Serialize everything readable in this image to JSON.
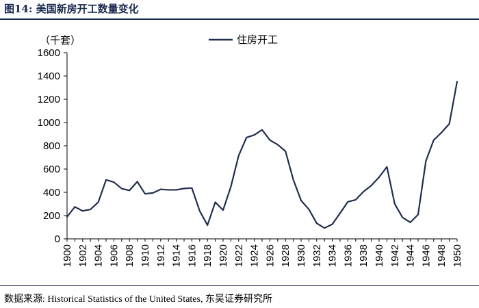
{
  "header": {
    "title": "图14:  美国新房开工数量变化"
  },
  "footer": {
    "source": "数据来源:  Historical Statistics of the United States,  东吴证券研究所"
  },
  "chart_data": {
    "type": "line",
    "title": "图14:  美国新房开工数量变化",
    "unit_label": "（千套）",
    "xlabel": "",
    "ylabel": "",
    "ylim": [
      0,
      1600
    ],
    "y_ticks": [
      0,
      200,
      400,
      600,
      800,
      1000,
      1200,
      1400,
      1600
    ],
    "x_ticks": [
      1900,
      1902,
      1904,
      1906,
      1908,
      1910,
      1912,
      1914,
      1916,
      1918,
      1920,
      1922,
      1924,
      1926,
      1928,
      1930,
      1932,
      1934,
      1936,
      1938,
      1940,
      1942,
      1944,
      1946,
      1948,
      1950
    ],
    "grid": false,
    "legend_position": "top-center",
    "line_color": "#1f2d4d",
    "x": [
      1900,
      1901,
      1902,
      1903,
      1904,
      1905,
      1906,
      1907,
      1908,
      1909,
      1910,
      1911,
      1912,
      1913,
      1914,
      1915,
      1916,
      1917,
      1918,
      1919,
      1920,
      1921,
      1922,
      1923,
      1924,
      1925,
      1926,
      1927,
      1928,
      1929,
      1930,
      1931,
      1932,
      1933,
      1934,
      1935,
      1936,
      1937,
      1938,
      1939,
      1940,
      1941,
      1942,
      1943,
      1944,
      1945,
      1946,
      1947,
      1948,
      1949,
      1950
    ],
    "series": [
      {
        "name": "住房开工",
        "values": [
          189,
          275,
          240,
          253,
          315,
          507,
          487,
          432,
          416,
          492,
          387,
          395,
          426,
          421,
          421,
          433,
          437,
          240,
          118,
          315,
          247,
          449,
          716,
          871,
          893,
          937,
          849,
          810,
          753,
          509,
          330,
          254,
          134,
          93,
          126,
          221,
          319,
          336,
          406,
          458,
          530,
          619,
          301,
          184,
          142,
          209,
          670,
          849,
          914,
          989,
          1352
        ]
      }
    ]
  }
}
